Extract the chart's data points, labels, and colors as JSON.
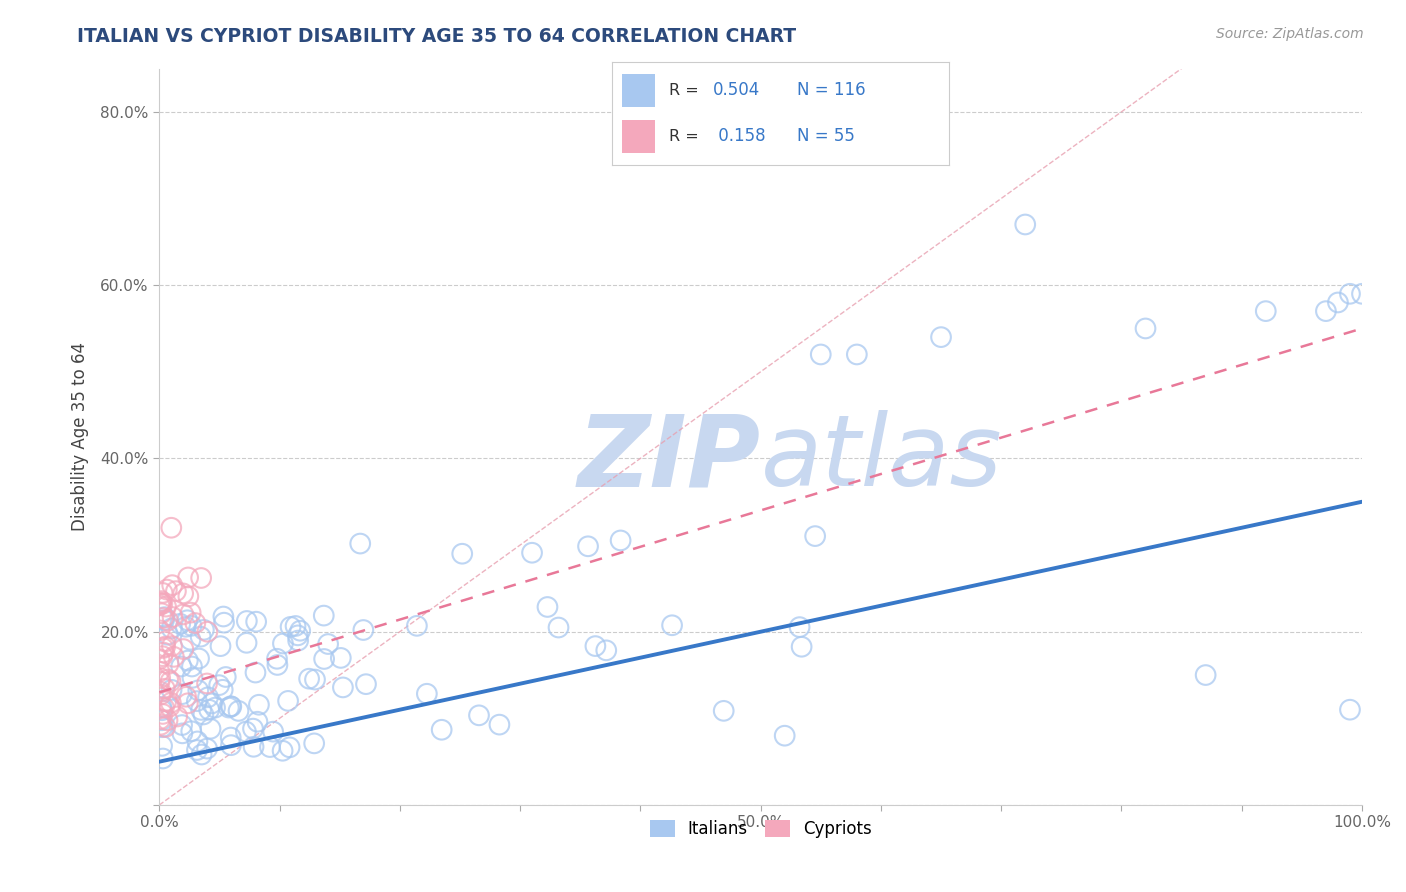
{
  "title": "ITALIAN VS CYPRIOT DISABILITY AGE 35 TO 64 CORRELATION CHART",
  "source": "Source: ZipAtlas.com",
  "ylabel": "Disability Age 35 to 64",
  "xlim": [
    0.0,
    1.0
  ],
  "ylim": [
    0.0,
    0.85
  ],
  "xtick_vals": [
    0.0,
    0.1,
    0.2,
    0.3,
    0.4,
    0.5,
    0.6,
    0.7,
    0.8,
    0.9,
    1.0
  ],
  "xticklabels": [
    "0.0%",
    "",
    "",
    "",
    "",
    "50.0%",
    "",
    "",
    "",
    "",
    "100.0%"
  ],
  "ytick_vals": [
    0.0,
    0.2,
    0.4,
    0.6,
    0.8
  ],
  "yticklabels": [
    "",
    "20.0%",
    "40.0%",
    "60.0%",
    "80.0%"
  ],
  "italian_R": "0.504",
  "italian_N": "116",
  "cypriot_R": "0.158",
  "cypriot_N": "55",
  "italian_scatter_color": "#a8c8f0",
  "cypriot_scatter_color": "#f4a8bc",
  "italian_line_color": "#3878c8",
  "cypriot_line_color": "#e87898",
  "diagonal_color": "#e8a0b0",
  "background_color": "#ffffff",
  "grid_color": "#cccccc",
  "title_color": "#2c4a7c",
  "watermark_main_color": "#c8d8f0",
  "legend_italian_label": "Italians",
  "legend_cypriot_label": "Cypriots",
  "legend_text_color": "#3878c8",
  "legend_label_color": "#333333"
}
